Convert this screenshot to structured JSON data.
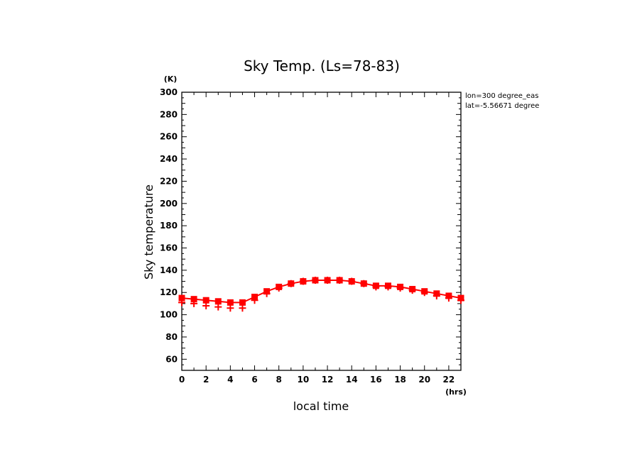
{
  "chart_data": {
    "type": "line",
    "title": "Sky Temp. (Ls=78-83)",
    "xlabel": "local time",
    "ylabel": "Sky temperature",
    "x_unit": "(hrs)",
    "y_unit": "(K)",
    "xlim": [
      0,
      23
    ],
    "ylim": [
      50,
      300
    ],
    "x_ticks": [
      0,
      2,
      4,
      6,
      8,
      10,
      12,
      14,
      16,
      18,
      20,
      22
    ],
    "y_ticks": [
      60,
      80,
      100,
      120,
      140,
      160,
      180,
      200,
      220,
      240,
      260,
      280,
      300
    ],
    "grid": false,
    "annotations": [
      "lon=300 degree_eas",
      "lat=-5.56671 degree"
    ],
    "color": "#ff0000",
    "series": [
      {
        "marker": "square-line",
        "x": [
          0,
          1,
          2,
          3,
          4,
          5,
          6,
          7,
          8,
          9,
          10,
          11,
          12,
          13,
          14,
          15,
          16,
          17,
          18,
          19,
          20,
          21,
          22,
          23
        ],
        "values": [
          115,
          114,
          113,
          112,
          111,
          111,
          116,
          121,
          125,
          128,
          130,
          131,
          131,
          131,
          130,
          128,
          126,
          126,
          125,
          123,
          121,
          119,
          117,
          115
        ]
      },
      {
        "marker": "plus",
        "x": [
          0,
          1,
          2,
          3,
          4,
          5,
          6,
          7,
          8,
          9,
          10,
          11,
          12,
          13,
          14,
          15,
          16,
          17,
          18,
          19,
          20,
          21,
          22,
          23
        ],
        "values": [
          111,
          110,
          108,
          107,
          106,
          106,
          113,
          119,
          124,
          128,
          130,
          131,
          131,
          131,
          130,
          128,
          125,
          125,
          124,
          122,
          120,
          117,
          115,
          113
        ]
      }
    ]
  }
}
